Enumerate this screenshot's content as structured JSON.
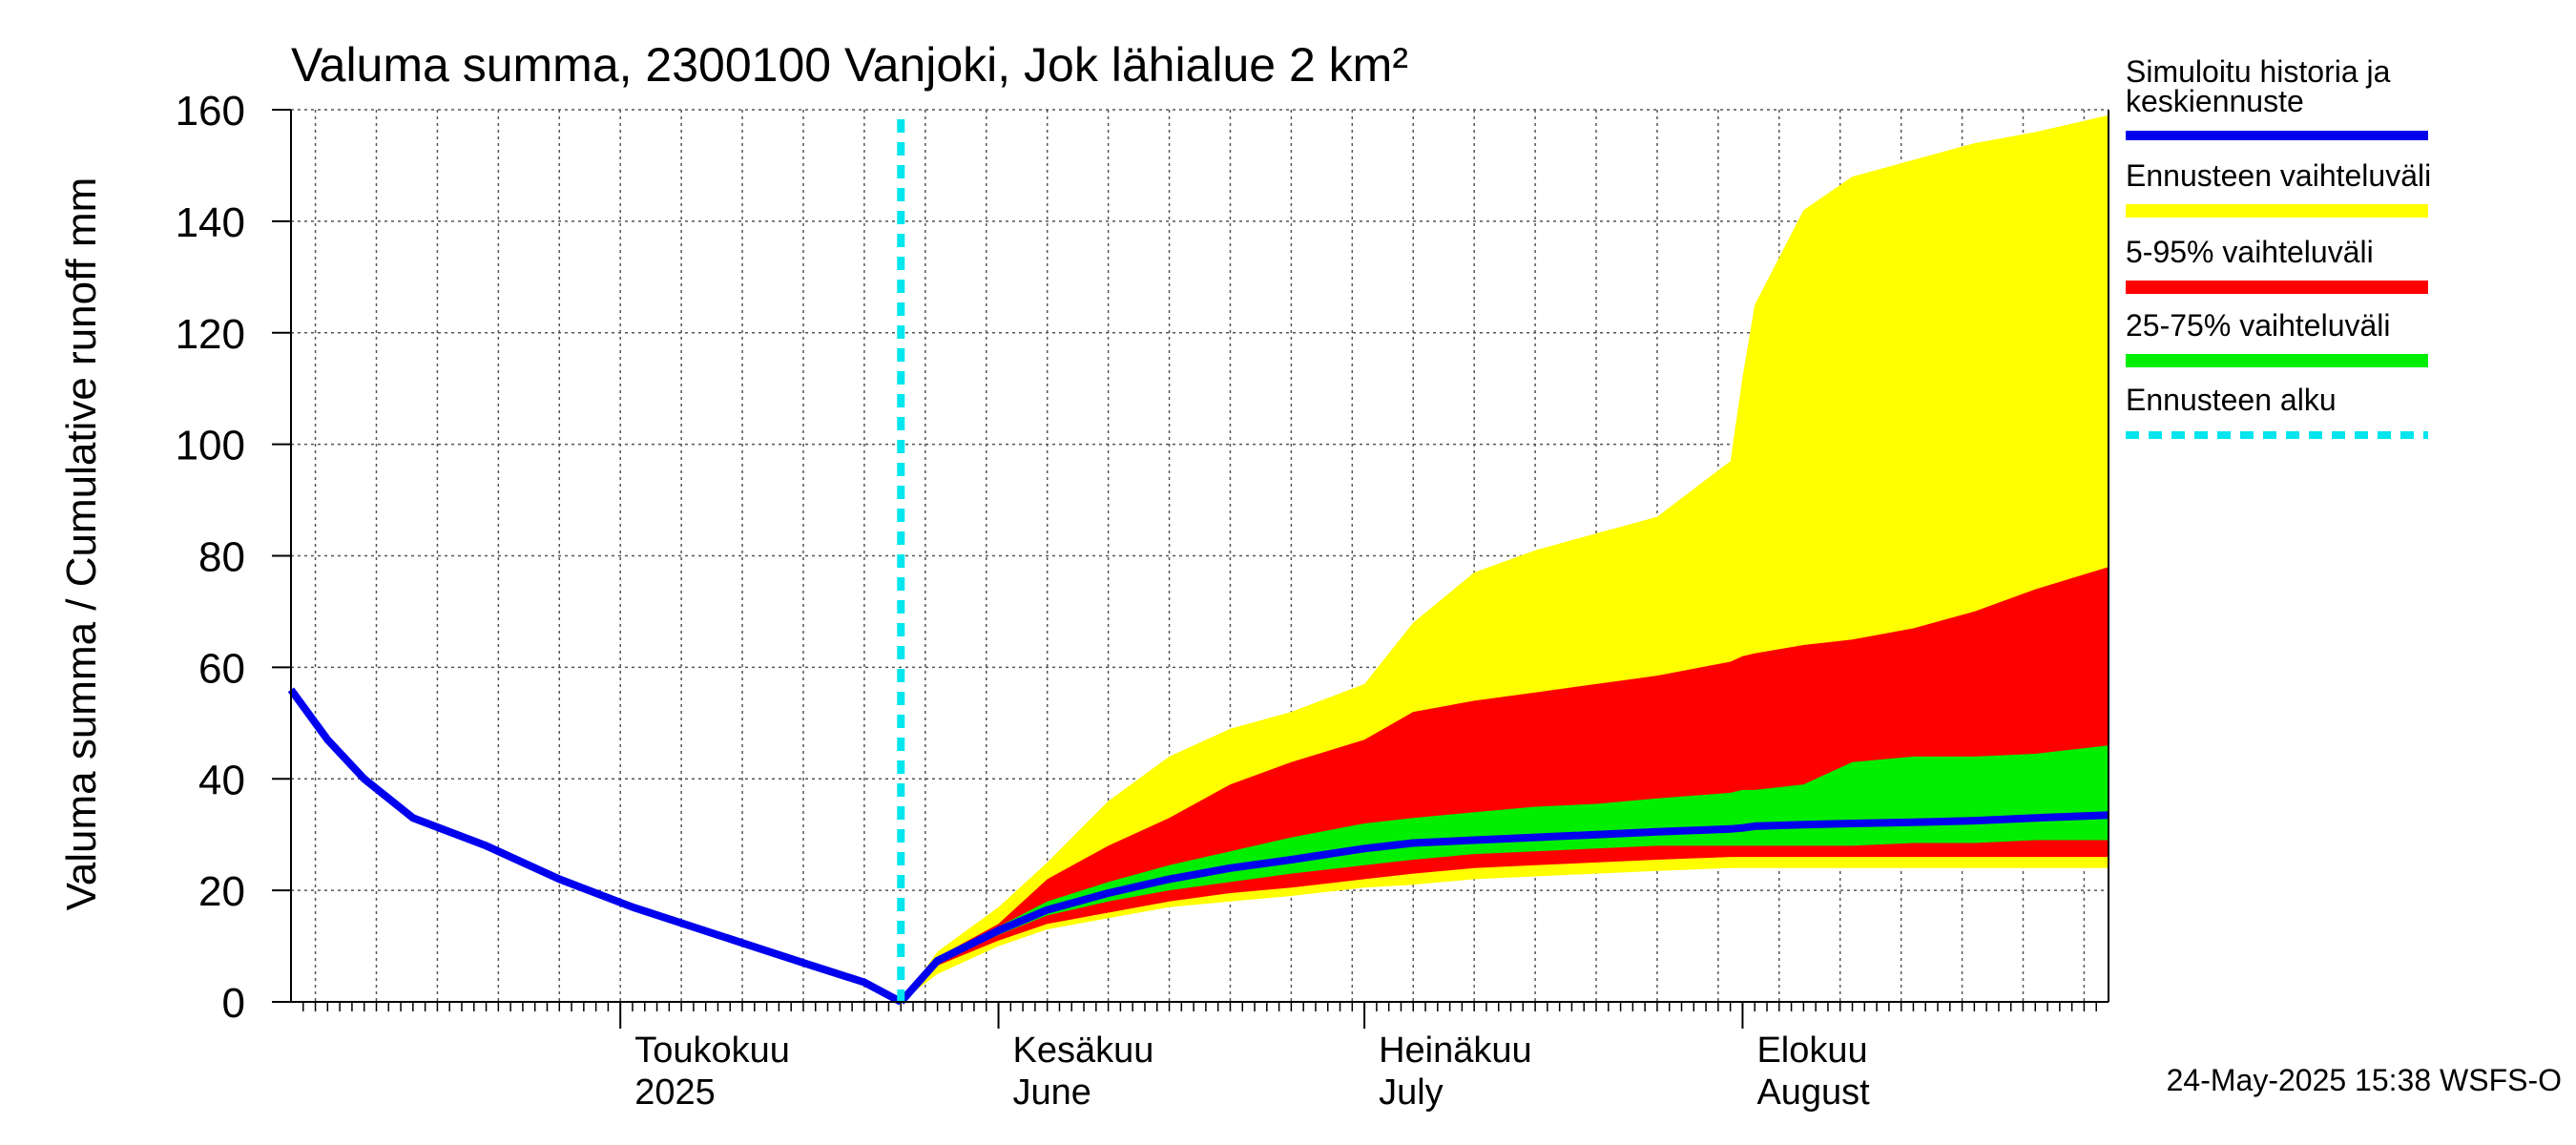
{
  "chart_data": {
    "type": "area",
    "title": "Valuma summa, 2300100 Vanjoki, Jok lähialue 2 km²",
    "ylabel": "Valuma summa / Cumulative runoff    mm",
    "ylim": [
      0,
      160
    ],
    "yticks": [
      0,
      20,
      40,
      60,
      80,
      100,
      120,
      140,
      160
    ],
    "xlim": [
      "2025-04-04",
      "2025-08-31"
    ],
    "forecast_start": "2025-05-24",
    "x_tick_labels": [
      {
        "date": "2025-05-01",
        "line1": "Toukokuu",
        "line2": "2025"
      },
      {
        "date": "2025-06-01",
        "line1": "Kesäkuu",
        "line2": "June"
      },
      {
        "date": "2025-07-01",
        "line1": "Heinäkuu",
        "line2": "July"
      },
      {
        "date": "2025-08-01",
        "line1": "Elokuu",
        "line2": "August"
      }
    ],
    "grid": true,
    "legend_position": "right",
    "legend": [
      {
        "label": "Simuloitu historia ja keskiennuste",
        "color": "#0000ee",
        "style": "line"
      },
      {
        "label": "Ennusteen vaihteluväli",
        "color": "#ffff00",
        "style": "band"
      },
      {
        "label": "5-95% vaihteluväli",
        "color": "#ff0000",
        "style": "band"
      },
      {
        "label": "25-75% vaihteluväli",
        "color": "#00ee00",
        "style": "band"
      },
      {
        "label": "Ennusteen alku",
        "color": "#00e5ee",
        "style": "dashed"
      }
    ],
    "history": {
      "x": [
        "2025-04-04",
        "2025-04-07",
        "2025-04-10",
        "2025-04-14",
        "2025-04-20",
        "2025-04-26",
        "2025-05-02",
        "2025-05-09",
        "2025-05-16",
        "2025-05-21",
        "2025-05-24"
      ],
      "values": [
        56,
        47,
        40,
        33,
        28,
        22,
        17,
        12,
        7,
        3.5,
        0
      ]
    },
    "forecast": {
      "x": [
        "2025-05-24",
        "2025-05-27",
        "2025-06-01",
        "2025-06-05",
        "2025-06-10",
        "2025-06-15",
        "2025-06-20",
        "2025-06-25",
        "2025-07-01",
        "2025-07-05",
        "2025-07-10",
        "2025-07-15",
        "2025-07-20",
        "2025-07-25",
        "2025-07-31",
        "2025-08-01",
        "2025-08-02",
        "2025-08-06",
        "2025-08-10",
        "2025-08-15",
        "2025-08-20",
        "2025-08-25",
        "2025-08-31"
      ],
      "envelope_min": [
        0,
        5,
        10,
        13,
        15,
        17,
        18,
        19,
        20.5,
        21,
        22,
        22.5,
        23,
        23.5,
        24,
        24,
        24,
        24,
        24,
        24,
        24,
        24,
        24
      ],
      "envelope_max": [
        0,
        9,
        17,
        25,
        36,
        44,
        49,
        52,
        57,
        68,
        77,
        81,
        84,
        87,
        97,
        112,
        125,
        142,
        148,
        151,
        154,
        156,
        159
      ],
      "p5": [
        0,
        6.5,
        11,
        14,
        16,
        18,
        19.5,
        20.5,
        22,
        23,
        24,
        24.5,
        25,
        25.5,
        26,
        26,
        26,
        26,
        26,
        26,
        26,
        26,
        26
      ],
      "p95": [
        0,
        8,
        14,
        22,
        28,
        33,
        39,
        43,
        47,
        52,
        54,
        55.5,
        57,
        58.5,
        61,
        62,
        62.5,
        64,
        65,
        67,
        70,
        74,
        78
      ],
      "p25": [
        0,
        7,
        12,
        15.5,
        18,
        20,
        21.5,
        23,
        24.5,
        25.5,
        26.5,
        27,
        27.5,
        28,
        28,
        28,
        28,
        28,
        28,
        28.5,
        28.5,
        29,
        29
      ],
      "p75": [
        0,
        7.8,
        13.5,
        18,
        21.5,
        24.5,
        27,
        29.5,
        32,
        33,
        34,
        35,
        35.5,
        36.5,
        37.5,
        38,
        38,
        39,
        43,
        44,
        44,
        44.5,
        46
      ],
      "median": [
        0,
        7.4,
        12.8,
        16.5,
        19.5,
        22,
        24,
        25.5,
        27.5,
        28.5,
        29,
        29.5,
        30,
        30.5,
        31,
        31.2,
        31.5,
        31.8,
        32,
        32.2,
        32.5,
        33,
        33.5
      ]
    }
  },
  "footer": {
    "timestamp": "24-May-2025 15:38 WSFS-O"
  },
  "colors": {
    "envelope": "#ffff00",
    "band_5_95": "#ff0000",
    "band_25_75": "#00ee00",
    "median": "#0000ee",
    "forecast_start": "#00e5ee",
    "grid": "#555555"
  }
}
